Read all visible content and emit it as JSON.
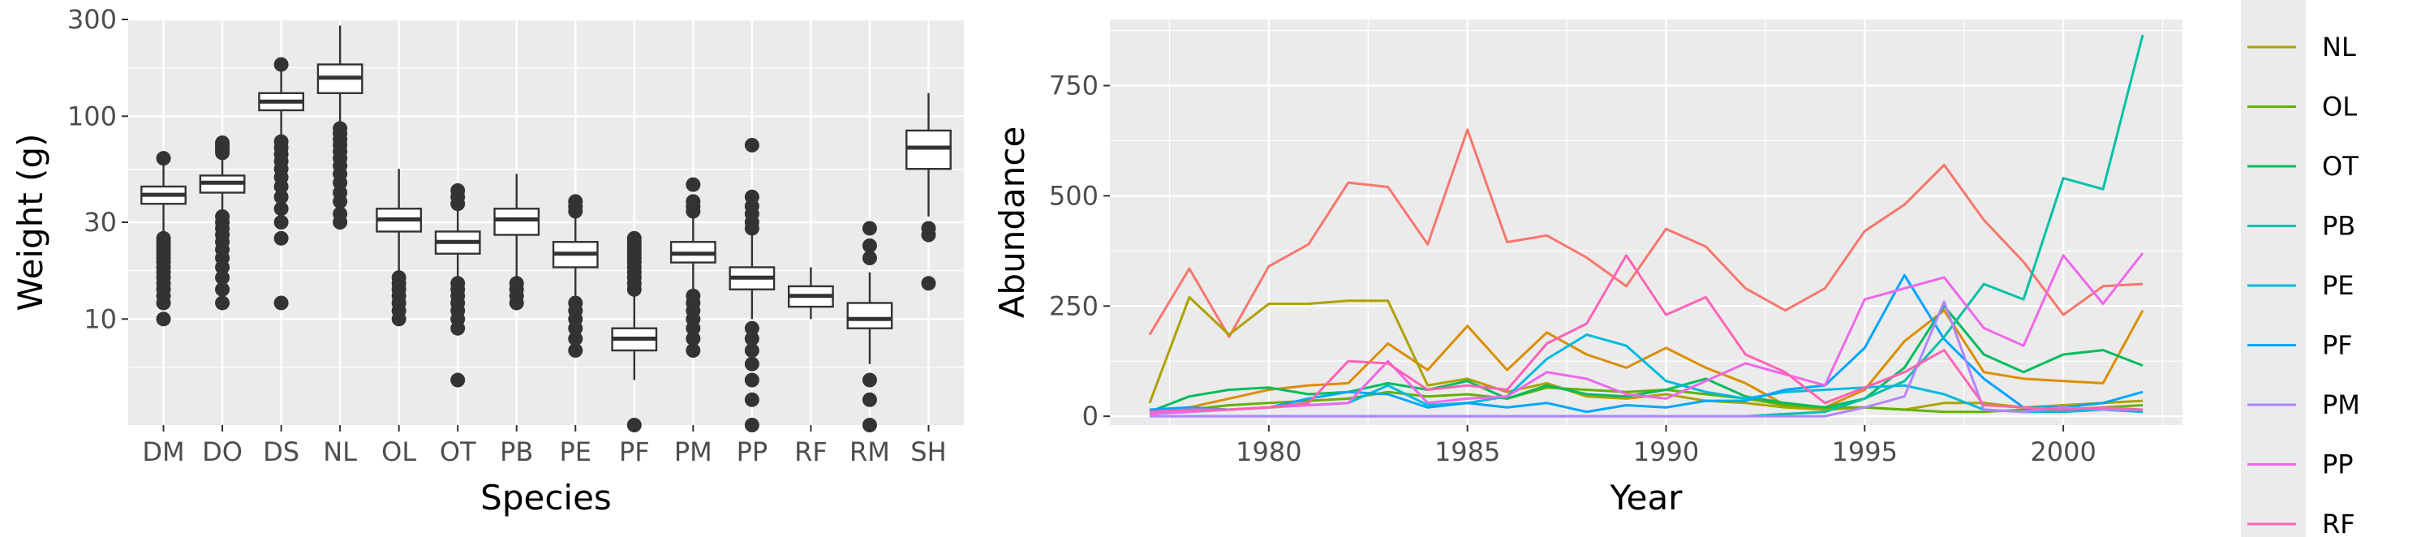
{
  "chart_data": [
    {
      "type": "boxplot",
      "xlabel": "Species",
      "ylabel": "Weight (g)",
      "yscale": "log10",
      "ylim": [
        3,
        300
      ],
      "yticks": [
        10,
        30,
        100,
        300
      ],
      "grid": true,
      "categories": [
        "DM",
        "DO",
        "DS",
        "NL",
        "OL",
        "OT",
        "PB",
        "PE",
        "PF",
        "PM",
        "PP",
        "RF",
        "RM",
        "SH"
      ],
      "boxes": [
        {
          "label": "DM",
          "whisker_low": 26,
          "q1": 37,
          "median": 41,
          "q3": 45,
          "whisker_high": 60,
          "outliers": [
            10,
            12,
            13,
            14,
            15,
            16,
            17,
            18,
            19,
            20,
            21,
            22,
            23,
            24,
            25,
            62
          ]
        },
        {
          "label": "DO",
          "whisker_low": 34,
          "q1": 42,
          "median": 47,
          "q3": 51,
          "whisker_high": 64,
          "outliers": [
            12,
            14,
            16,
            18,
            20,
            22,
            24,
            26,
            28,
            30,
            32,
            66,
            68,
            70,
            72,
            74
          ]
        },
        {
          "label": "DS",
          "whisker_low": 80,
          "q1": 107,
          "median": 118,
          "q3": 130,
          "whisker_high": 170,
          "outliers": [
            12,
            25,
            30,
            35,
            40,
            45,
            50,
            55,
            60,
            65,
            70,
            75,
            180
          ]
        },
        {
          "label": "NL",
          "whisker_low": 90,
          "q1": 130,
          "median": 155,
          "q3": 180,
          "whisker_high": 280,
          "outliers": [
            30,
            33,
            38,
            42,
            47,
            52,
            57,
            62,
            67,
            72,
            77,
            82,
            87
          ]
        },
        {
          "label": "OL",
          "whisker_low": 17,
          "q1": 27,
          "median": 31,
          "q3": 35,
          "whisker_high": 55,
          "outliers": [
            10,
            11,
            12,
            13,
            14,
            15,
            16
          ]
        },
        {
          "label": "OT",
          "whisker_low": 16,
          "q1": 21,
          "median": 24,
          "q3": 27,
          "whisker_high": 35,
          "outliers": [
            5,
            9,
            10,
            11,
            12,
            13,
            14,
            15,
            37,
            40,
            43
          ]
        },
        {
          "label": "PB",
          "whisker_low": 16,
          "q1": 26,
          "median": 31,
          "q3": 35,
          "whisker_high": 52,
          "outliers": [
            12,
            13,
            14,
            15
          ]
        },
        {
          "label": "PE",
          "whisker_low": 13,
          "q1": 18,
          "median": 21,
          "q3": 24,
          "whisker_high": 32,
          "outliers": [
            7,
            8,
            9,
            10,
            11,
            12,
            34,
            36,
            38
          ]
        },
        {
          "label": "PF",
          "whisker_low": 5,
          "q1": 7,
          "median": 8,
          "q3": 9,
          "whisker_high": 13,
          "outliers": [
            3,
            14,
            15,
            16,
            17,
            18,
            19,
            20,
            21,
            22,
            23,
            24,
            25
          ]
        },
        {
          "label": "PM",
          "whisker_low": 14,
          "q1": 19,
          "median": 21,
          "q3": 24,
          "whisker_high": 32,
          "outliers": [
            7,
            8,
            9,
            10,
            11,
            12,
            13,
            34,
            36,
            38,
            46
          ]
        },
        {
          "label": "PP",
          "whisker_low": 10,
          "q1": 14,
          "median": 16,
          "q3": 18,
          "whisker_high": 26,
          "outliers": [
            3,
            4,
            5,
            6,
            7,
            8,
            9,
            28,
            30,
            33,
            36,
            40,
            72
          ]
        },
        {
          "label": "RF",
          "whisker_low": 10,
          "q1": 11.5,
          "median": 13,
          "q3": 14.5,
          "whisker_high": 18,
          "outliers": []
        },
        {
          "label": "RM",
          "whisker_low": 6,
          "q1": 9,
          "median": 10,
          "q3": 12,
          "whisker_high": 17,
          "outliers": [
            3,
            4,
            5,
            20,
            23,
            28
          ]
        },
        {
          "label": "SH",
          "whisker_low": 32,
          "q1": 55,
          "median": 70,
          "q3": 85,
          "whisker_high": 130,
          "outliers": [
            15,
            26,
            28
          ]
        }
      ]
    },
    {
      "type": "line",
      "xlabel": "Year",
      "ylabel": "Abundance",
      "xlim": [
        1976,
        2003
      ],
      "ylim": [
        -20,
        900
      ],
      "xticks": [
        1980,
        1985,
        1990,
        1995,
        2000
      ],
      "yticks": [
        0,
        250,
        500,
        750
      ],
      "grid": true,
      "legend_position": "right",
      "x": [
        1977,
        1978,
        1979,
        1980,
        1981,
        1982,
        1983,
        1984,
        1985,
        1986,
        1987,
        1988,
        1989,
        1990,
        1991,
        1992,
        1993,
        1994,
        1995,
        1996,
        1997,
        1998,
        1999,
        2000,
        2001,
        2002
      ],
      "series": [
        {
          "color": "#F8766D",
          "values": [
            185,
            335,
            180,
            340,
            390,
            530,
            520,
            390,
            650,
            395,
            410,
            360,
            295,
            425,
            385,
            290,
            240,
            290,
            420,
            480,
            570,
            445,
            350,
            230,
            295,
            300
          ]
        },
        {
          "color": "#DB8E00",
          "values": [
            5,
            20,
            40,
            60,
            70,
            75,
            165,
            105,
            205,
            105,
            190,
            140,
            110,
            155,
            110,
            75,
            25,
            20,
            60,
            170,
            240,
            100,
            85,
            80,
            75,
            240
          ]
        },
        {
          "name": "NL",
          "color": "#AEA200",
          "values": [
            30,
            270,
            185,
            255,
            255,
            262,
            262,
            70,
            85,
            55,
            75,
            45,
            40,
            50,
            35,
            30,
            20,
            15,
            20,
            15,
            30,
            30,
            20,
            25,
            30,
            35
          ]
        },
        {
          "name": "OL",
          "color": "#64B200",
          "values": [
            5,
            15,
            25,
            30,
            35,
            40,
            55,
            45,
            50,
            40,
            65,
            60,
            55,
            60,
            50,
            40,
            25,
            20,
            20,
            15,
            10,
            10,
            15,
            15,
            20,
            25
          ]
        },
        {
          "name": "OT",
          "color": "#00BD5C",
          "values": [
            10,
            45,
            60,
            65,
            50,
            55,
            75,
            60,
            80,
            40,
            70,
            50,
            45,
            60,
            85,
            45,
            30,
            20,
            40,
            110,
            250,
            140,
            100,
            140,
            150,
            115
          ]
        },
        {
          "name": "PB",
          "color": "#00C1A7",
          "values": [
            0,
            0,
            0,
            0,
            0,
            0,
            0,
            0,
            0,
            0,
            0,
            0,
            0,
            0,
            0,
            0,
            5,
            10,
            40,
            80,
            180,
            300,
            265,
            540,
            515,
            865
          ]
        },
        {
          "name": "PE",
          "color": "#00BADE",
          "values": [
            5,
            10,
            15,
            20,
            25,
            30,
            70,
            25,
            30,
            45,
            130,
            185,
            160,
            80,
            55,
            40,
            55,
            60,
            65,
            70,
            50,
            15,
            10,
            10,
            15,
            10
          ]
        },
        {
          "name": "PF",
          "color": "#00A6FF",
          "values": [
            15,
            20,
            15,
            20,
            40,
            55,
            50,
            20,
            30,
            20,
            30,
            10,
            25,
            20,
            35,
            35,
            60,
            70,
            155,
            320,
            175,
            85,
            20,
            20,
            30,
            55
          ]
        },
        {
          "name": "PM",
          "color": "#B385FF",
          "values": [
            0,
            0,
            0,
            0,
            0,
            0,
            0,
            0,
            0,
            0,
            0,
            0,
            0,
            0,
            0,
            0,
            0,
            0,
            20,
            45,
            260,
            15,
            10,
            20,
            15,
            15
          ]
        },
        {
          "name": "PP",
          "color": "#EF67EB",
          "values": [
            5,
            10,
            15,
            20,
            25,
            30,
            125,
            30,
            40,
            45,
            100,
            85,
            50,
            40,
            80,
            120,
            95,
            70,
            265,
            290,
            315,
            200,
            160,
            365,
            255,
            370
          ]
        },
        {
          "name": "RF",
          "color": "#FF63B6",
          "values": [
            10,
            15,
            15,
            20,
            30,
            125,
            120,
            60,
            70,
            60,
            165,
            210,
            365,
            230,
            270,
            140,
            100,
            30,
            65,
            100,
            150,
            25,
            20,
            15,
            20,
            15
          ]
        }
      ]
    }
  ]
}
